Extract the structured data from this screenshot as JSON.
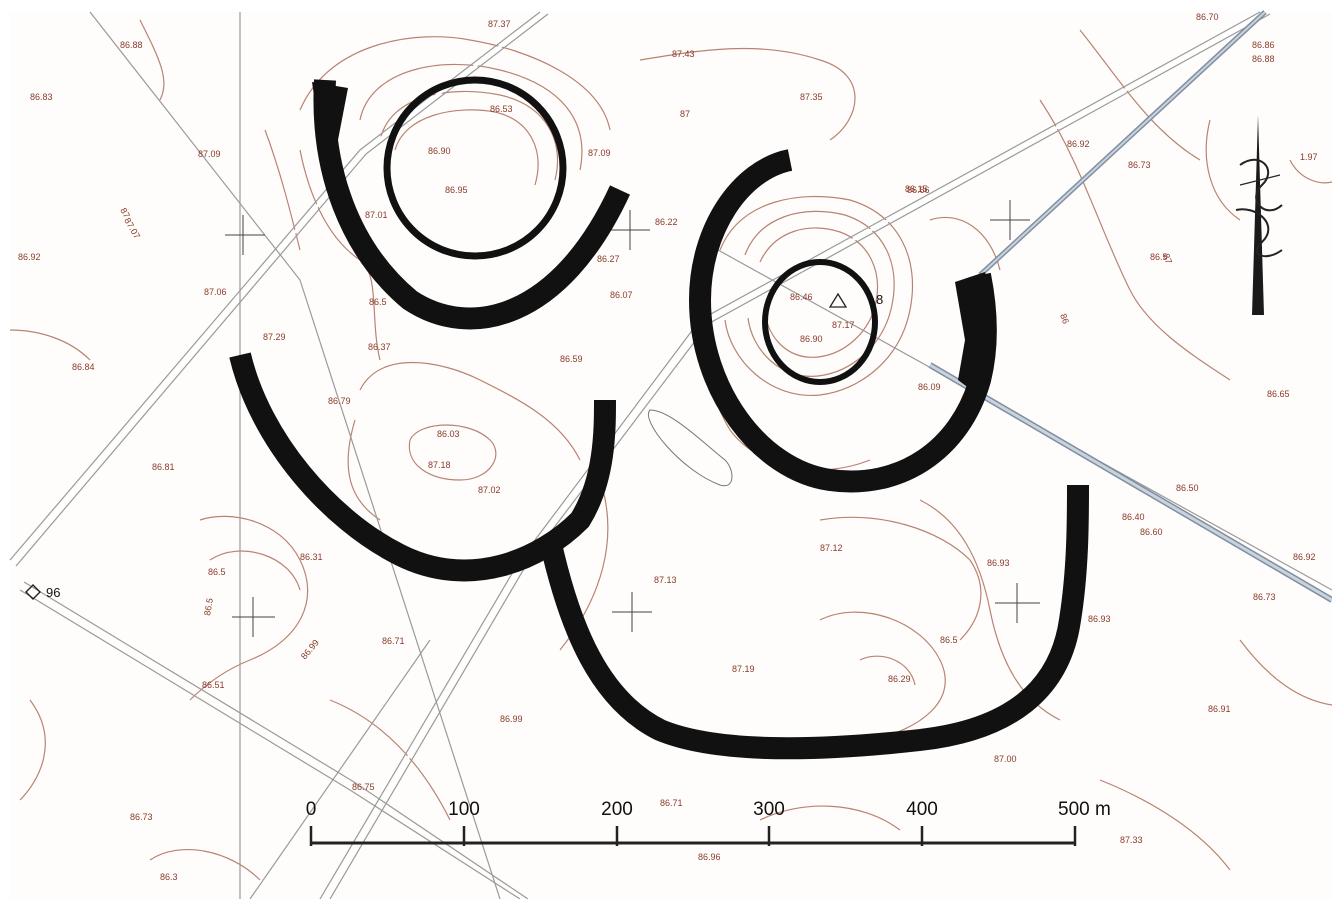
{
  "map": {
    "scale_bar": {
      "labels": [
        "0",
        "100",
        "200",
        "300",
        "400",
        "500 m"
      ]
    },
    "point_label": "96",
    "station_label": "8",
    "elevations": [
      "86.88",
      "87.37",
      "87.43",
      "86.70",
      "86.86",
      "86.88",
      "86.83",
      "86.53",
      "87.35",
      "87",
      "87.09",
      "86.92",
      "86.90",
      "87.09",
      "86.66",
      "86.73",
      "1.97",
      "87.01",
      "86.95",
      "86.15",
      "86.22",
      "87.07",
      "86.27",
      "86.92",
      "87.06",
      "86.5",
      "86.5",
      "86.46",
      "87.17",
      "86.07",
      "86.90",
      "87.29",
      "86.37",
      "86.59",
      "86.84",
      "86.79",
      "86.03",
      "86.65",
      "86.09",
      "87.18",
      "86.81",
      "87.02",
      "86.50",
      "86.40",
      "86.60",
      "86.92",
      "86.5",
      "87.12",
      "86.31",
      "86.93",
      "87.13",
      "86.73",
      "86.5",
      "86.71",
      "86.93",
      "86.29",
      "87.19",
      "86.51",
      "86.99",
      "86.91",
      "87.00",
      "86.73",
      "86.75",
      "86.71",
      "86.96",
      "87.33",
      "86.3",
      "86.5",
      "86.99",
      "87",
      "87",
      "86"
    ]
  }
}
